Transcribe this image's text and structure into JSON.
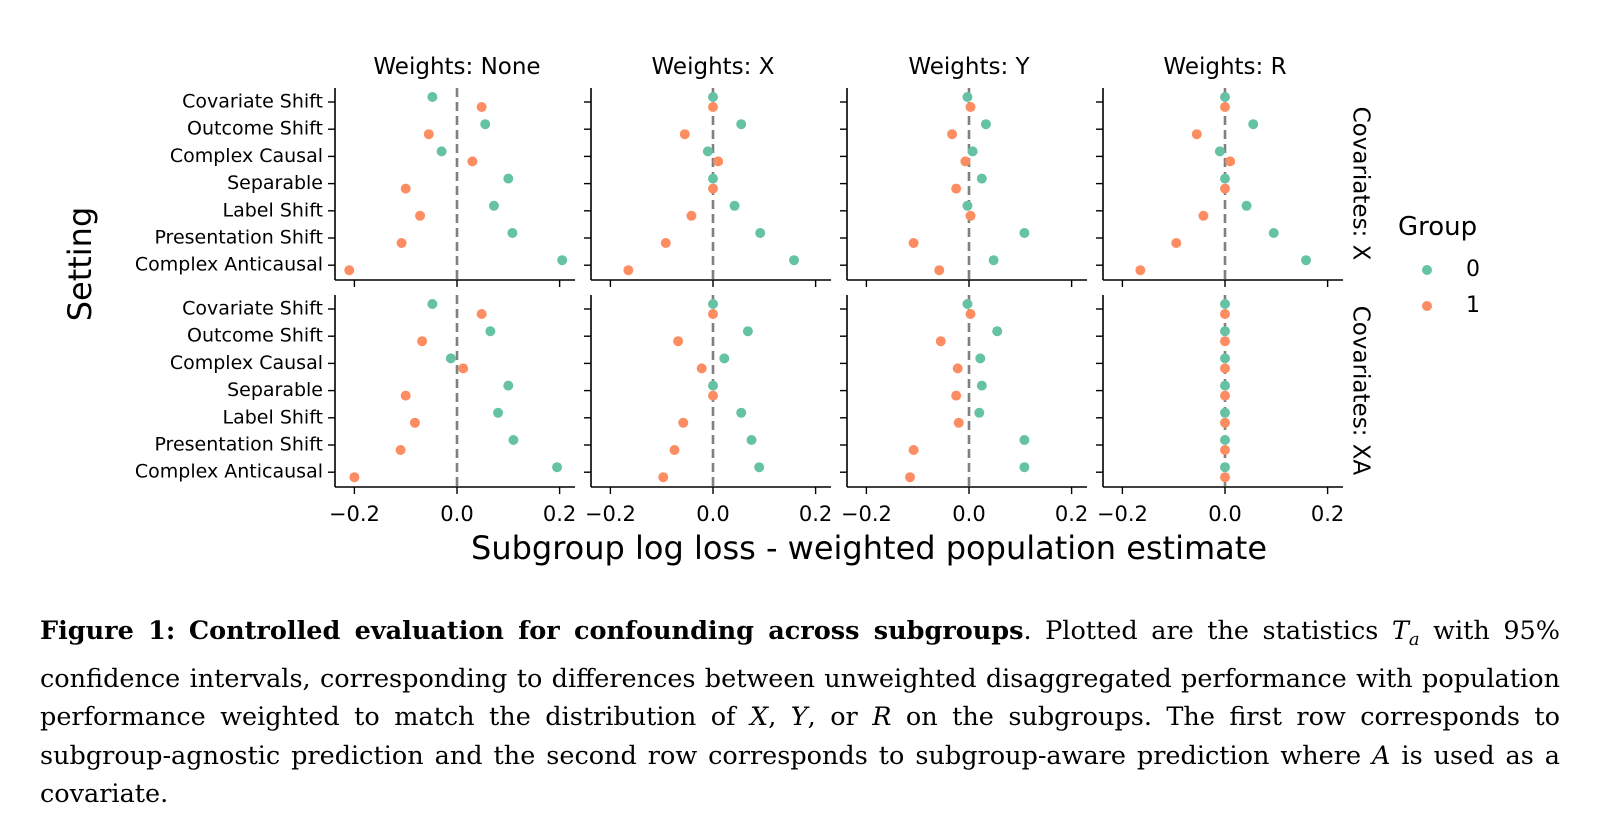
{
  "chart_data": {
    "type": "scatter",
    "subtype": "faceted dot plot",
    "x_axis_title": "Subgroup log loss - weighted population estimate",
    "y_axis_title": "Setting",
    "xlim": [
      -0.23,
      0.23
    ],
    "x_ticks": [
      -0.2,
      0.0,
      0.2
    ],
    "x_tick_labels": [
      "−0.2",
      "0.0",
      "0.2"
    ],
    "reference_line": {
      "x": 0.0,
      "style": "dashed",
      "color": "#808080"
    },
    "categories": [
      "Covariate Shift",
      "Outcome Shift",
      "Complex Causal",
      "Separable",
      "Label Shift",
      "Presentation Shift",
      "Complex Anticausal"
    ],
    "column_titles": [
      "Weights: None",
      "Weights: X",
      "Weights: Y",
      "Weights: R"
    ],
    "row_titles": [
      "Covariates: X",
      "Covariates: XA"
    ],
    "legend": {
      "title": "Group",
      "position": "right",
      "entries": [
        {
          "label": "0",
          "color": "#66c2a5"
        },
        {
          "label": "1",
          "color": "#fc8d62"
        }
      ]
    },
    "panels": [
      {
        "row": "Covariates: X",
        "column": "Weights: None",
        "series": [
          {
            "name": "0",
            "values": [
              -0.048,
              0.055,
              -0.03,
              0.1,
              0.072,
              0.108,
              0.205
            ]
          },
          {
            "name": "1",
            "values": [
              0.048,
              -0.055,
              0.03,
              -0.1,
              -0.072,
              -0.108,
              -0.21
            ]
          }
        ]
      },
      {
        "row": "Covariates: X",
        "column": "Weights: X",
        "series": [
          {
            "name": "0",
            "values": [
              0.0,
              0.055,
              -0.01,
              0.0,
              0.042,
              0.092,
              0.158
            ]
          },
          {
            "name": "1",
            "values": [
              0.0,
              -0.055,
              0.01,
              0.0,
              -0.042,
              -0.092,
              -0.165
            ]
          }
        ]
      },
      {
        "row": "Covariates: X",
        "column": "Weights: Y",
        "series": [
          {
            "name": "0",
            "values": [
              -0.003,
              0.033,
              0.007,
              0.025,
              -0.003,
              0.108,
              0.048
            ]
          },
          {
            "name": "1",
            "values": [
              0.003,
              -0.033,
              -0.007,
              -0.025,
              0.003,
              -0.108,
              -0.058
            ]
          }
        ]
      },
      {
        "row": "Covariates: X",
        "column": "Weights: R",
        "series": [
          {
            "name": "0",
            "values": [
              0.0,
              0.055,
              -0.01,
              0.0,
              0.042,
              0.095,
              0.158
            ]
          },
          {
            "name": "1",
            "values": [
              0.0,
              -0.055,
              0.01,
              0.0,
              -0.042,
              -0.095,
              -0.165
            ]
          }
        ]
      },
      {
        "row": "Covariates: XA",
        "column": "Weights: None",
        "series": [
          {
            "name": "0",
            "values": [
              -0.048,
              0.065,
              -0.012,
              0.1,
              0.08,
              0.11,
              0.195
            ]
          },
          {
            "name": "1",
            "values": [
              0.048,
              -0.068,
              0.012,
              -0.1,
              -0.082,
              -0.11,
              -0.2
            ]
          }
        ]
      },
      {
        "row": "Covariates: XA",
        "column": "Weights: X",
        "series": [
          {
            "name": "0",
            "values": [
              0.0,
              0.068,
              0.022,
              0.0,
              0.055,
              0.075,
              0.09
            ]
          },
          {
            "name": "1",
            "values": [
              0.0,
              -0.068,
              -0.022,
              0.0,
              -0.058,
              -0.075,
              -0.097
            ]
          }
        ]
      },
      {
        "row": "Covariates: XA",
        "column": "Weights: Y",
        "series": [
          {
            "name": "0",
            "values": [
              -0.003,
              0.055,
              0.022,
              0.025,
              0.02,
              0.108,
              0.108
            ]
          },
          {
            "name": "1",
            "values": [
              0.003,
              -0.055,
              -0.022,
              -0.025,
              -0.02,
              -0.108,
              -0.115
            ]
          }
        ]
      },
      {
        "row": "Covariates: XA",
        "column": "Weights: R",
        "series": [
          {
            "name": "0",
            "values": [
              0.0,
              0.0,
              0.0,
              0.0,
              0.0,
              0.0,
              0.0
            ]
          },
          {
            "name": "1",
            "values": [
              0.0,
              0.0,
              0.0,
              0.0,
              0.0,
              0.0,
              0.0
            ]
          }
        ]
      }
    ]
  },
  "caption": {
    "label": "Figure 1:",
    "bold_title": "Controlled evaluation for confounding across subgroups",
    "segments": [
      {
        "t": ". Plotted are the statistics "
      },
      {
        "t": "T",
        "i": true
      },
      {
        "t": "a",
        "sub": true
      },
      {
        "t": " with 95% confidence intervals, corresponding to differences between unweighted disaggregated performance with population performance weighted to match the distribution of "
      },
      {
        "t": "X",
        "i": true
      },
      {
        "t": ", "
      },
      {
        "t": "Y",
        "i": true
      },
      {
        "t": ", or "
      },
      {
        "t": "R",
        "i": true
      },
      {
        "t": " on the subgroups. The first row corresponds to subgroup-agnostic prediction and the second row corresponds to subgroup-aware prediction where "
      },
      {
        "t": "A",
        "i": true
      },
      {
        "t": " is used as a covariate."
      }
    ]
  }
}
